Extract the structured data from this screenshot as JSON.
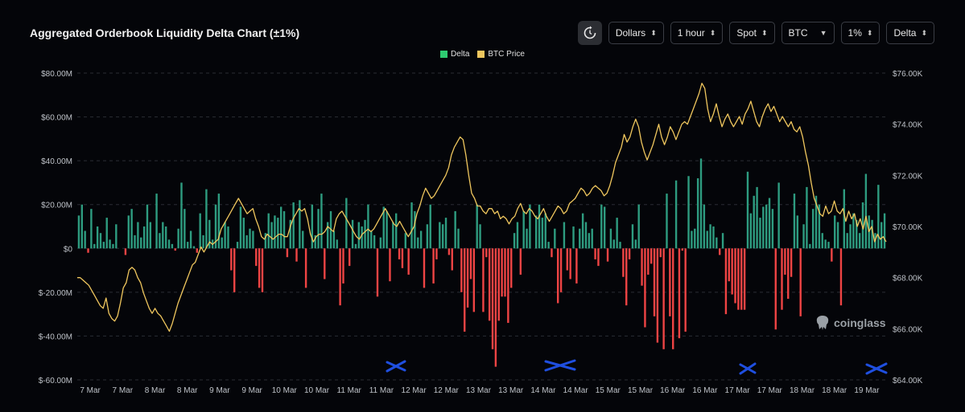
{
  "header": {
    "title": "Aggregated Orderbook Liquidity Delta Chart (±1%)",
    "controls": [
      {
        "label": "Dollars",
        "icon": "updown-chevron-icon"
      },
      {
        "label": "1 hour",
        "icon": "updown-chevron-icon"
      },
      {
        "label": "Spot",
        "icon": "updown-chevron-icon"
      },
      {
        "label": "BTC",
        "icon": "caret-down-icon"
      },
      {
        "label": "1%",
        "icon": "updown-chevron-icon"
      },
      {
        "label": "Delta",
        "icon": "updown-chevron-icon"
      }
    ]
  },
  "watermark": "coinglass",
  "chart_data": {
    "type": "bar+line",
    "title": "Aggregated Orderbook Liquidity Delta Chart (±1%)",
    "legend": [
      {
        "name": "Delta",
        "color": "#2ecc71"
      },
      {
        "name": "BTC Price",
        "color": "#f0c75e"
      }
    ],
    "colors": {
      "positive": "#2e9c80",
      "negative": "#ef4444",
      "price": "#f0c75e",
      "marker": "#1f4fe0"
    },
    "y_left": {
      "min": -60000000,
      "max": 80000000,
      "ticks": [
        80000000,
        60000000,
        40000000,
        20000000,
        0,
        -20000000,
        -40000000,
        -60000000
      ],
      "tick_labels": [
        "$80.00M",
        "$60.00M",
        "$40.00M",
        "$20.00M",
        "$0",
        "$-20.00M",
        "$-40.00M",
        "$-60.00M"
      ]
    },
    "y_right": {
      "min": 64000,
      "max": 76000,
      "ticks": [
        76000,
        74000,
        72000,
        70000,
        68000,
        66000,
        64000
      ],
      "tick_labels": [
        "$76.00K",
        "$74.00K",
        "$72.00K",
        "$70.00K",
        "$68.00K",
        "$66.00K",
        "$64.00K"
      ]
    },
    "x_labels": [
      "7 Mar",
      "7 Mar",
      "8 Mar",
      "8 Mar",
      "9 Mar",
      "9 Mar",
      "10 Mar",
      "10 Mar",
      "11 Mar",
      "11 Mar",
      "12 Mar",
      "12 Mar",
      "13 Mar",
      "13 Mar",
      "14 Mar",
      "14 Mar",
      "15 Mar",
      "15 Mar",
      "16 Mar",
      "16 Mar",
      "17 Mar",
      "17 Mar",
      "18 Mar",
      "18 Mar",
      "19 Mar"
    ],
    "delta_values_musd": [
      15,
      20,
      8,
      -2,
      18,
      2,
      10,
      7,
      3,
      14,
      4,
      2,
      11,
      0,
      0,
      -3,
      15,
      18,
      6,
      12,
      5,
      10,
      20,
      12,
      0,
      25,
      7,
      12,
      10,
      4,
      2,
      -1,
      9,
      30,
      18,
      3,
      8,
      1,
      -2,
      16,
      6,
      27,
      13,
      4,
      20,
      25,
      5,
      12,
      10,
      -10,
      -20,
      3,
      19,
      14,
      6,
      9,
      8,
      -8,
      -18,
      -20,
      7,
      16,
      12,
      15,
      14,
      19,
      17,
      -4,
      13,
      21,
      -6,
      22,
      8,
      -18,
      0,
      20,
      6,
      18,
      25,
      -14,
      12,
      17,
      8,
      4,
      -26,
      -16,
      23,
      -8,
      13,
      2,
      12,
      10,
      13,
      20,
      8,
      6,
      -22,
      5,
      19,
      17,
      -15,
      12,
      16,
      -5,
      -9,
      7,
      -12,
      21,
      17,
      5,
      8,
      -18,
      11,
      20,
      -16,
      -5,
      12,
      11,
      14,
      -3,
      -10,
      17,
      9,
      -20,
      -38,
      -27,
      -14,
      -29,
      20,
      11,
      -29,
      -4,
      -33,
      -46,
      -54,
      -33,
      -22,
      -22,
      -34,
      -18,
      7,
      12,
      -12,
      17,
      9,
      20,
      0,
      15,
      20,
      14,
      16,
      3,
      -4,
      9,
      -25,
      -20,
      12,
      -10,
      -14,
      10,
      -16,
      9,
      16,
      12,
      7,
      9,
      -5,
      -8,
      20,
      19,
      -6,
      9,
      4,
      14,
      3,
      -13,
      -26,
      -5,
      11,
      4,
      20,
      -17,
      -36,
      -12,
      -7,
      -31,
      -43,
      -4,
      -46,
      25,
      -31,
      -46,
      31,
      -41,
      -1,
      -38,
      33,
      8,
      9,
      32,
      41,
      20,
      8,
      11,
      10,
      5,
      -3,
      7,
      -30,
      -15,
      -21,
      -25,
      -28,
      -28,
      -28,
      35,
      16,
      24,
      28,
      14,
      19,
      20,
      23,
      18,
      -37,
      30,
      -28,
      -12,
      -23,
      -13,
      25,
      15,
      -31,
      11,
      28,
      2,
      18,
      24,
      20,
      7,
      4,
      3,
      -6,
      15,
      12,
      -26,
      27,
      7,
      11,
      16,
      13,
      7,
      21,
      34,
      15,
      13,
      7,
      29,
      12,
      16
    ],
    "price_points_k": [
      68.0,
      68.0,
      67.9,
      67.8,
      67.7,
      67.5,
      67.3,
      67.1,
      66.9,
      66.8,
      67.2,
      66.6,
      66.4,
      66.3,
      66.5,
      67.0,
      67.6,
      67.8,
      68.3,
      68.4,
      68.3,
      68.0,
      67.8,
      67.4,
      67.1,
      66.8,
      66.6,
      66.8,
      66.6,
      66.5,
      66.3,
      66.1,
      65.9,
      66.2,
      66.6,
      67.0,
      67.3,
      67.6,
      67.9,
      68.2,
      68.5,
      68.6,
      68.9,
      69.2,
      69.0,
      69.2,
      69.4,
      69.3,
      69.4,
      69.5,
      69.9,
      70.1,
      70.3,
      70.5,
      70.7,
      70.9,
      71.1,
      70.9,
      70.7,
      70.5,
      70.6,
      70.7,
      70.3,
      70.0,
      69.6,
      69.5,
      69.7,
      69.6,
      69.5,
      69.6,
      69.7,
      69.7,
      69.6,
      69.6,
      70.0,
      70.3,
      70.5,
      70.7,
      70.6,
      70.7,
      70.3,
      69.7,
      69.4,
      69.6,
      69.7,
      69.7,
      69.8,
      70.0,
      69.9,
      69.8,
      70.3,
      70.5,
      70.6,
      70.4,
      70.2,
      70.0,
      69.8,
      69.6,
      69.5,
      69.7,
      69.8,
      69.9,
      69.8,
      69.9,
      70.1,
      70.3,
      70.5,
      70.7,
      70.5,
      70.3,
      70.1,
      70.0,
      70.2,
      70.0,
      69.8,
      69.6,
      69.8,
      70.0,
      70.5,
      70.8,
      71.2,
      71.5,
      71.3,
      71.1,
      71.2,
      71.4,
      71.6,
      71.8,
      72.0,
      72.3,
      72.8,
      73.1,
      73.3,
      73.5,
      73.4,
      72.8,
      72.0,
      71.3,
      71.1,
      70.8,
      70.8,
      70.6,
      70.5,
      70.7,
      70.7,
      70.5,
      70.6,
      70.3,
      70.4,
      70.3,
      70.1,
      70.3,
      70.4,
      70.7,
      70.9,
      70.6,
      70.5,
      70.7,
      70.6,
      70.4,
      70.3,
      70.5,
      70.7,
      70.4,
      70.2,
      70.4,
      70.6,
      70.8,
      70.7,
      70.5,
      70.6,
      70.9,
      71.0,
      71.1,
      71.3,
      71.5,
      71.4,
      71.2,
      71.3,
      71.5,
      71.6,
      71.5,
      71.4,
      71.2,
      71.3,
      71.6,
      72.0,
      72.5,
      72.8,
      73.1,
      73.6,
      73.3,
      73.5,
      73.9,
      74.2,
      73.9,
      73.3,
      72.9,
      72.6,
      72.9,
      73.2,
      73.6,
      74.0,
      73.5,
      73.2,
      73.5,
      73.9,
      73.7,
      73.4,
      73.7,
      74.0,
      74.1,
      74.0,
      74.3,
      74.6,
      74.9,
      75.2,
      75.6,
      75.4,
      74.6,
      74.1,
      74.4,
      74.8,
      74.3,
      73.9,
      74.2,
      74.4,
      74.1,
      73.9,
      74.1,
      74.3,
      74.0,
      74.4,
      74.6,
      74.9,
      74.5,
      74.1,
      73.9,
      74.3,
      74.6,
      74.8,
      74.5,
      74.7,
      74.4,
      74.1,
      74.3,
      74.1,
      73.9,
      74.1,
      73.8,
      73.7,
      73.9,
      73.5,
      72.9,
      72.4,
      71.7,
      71.1,
      70.8,
      70.5,
      70.4,
      70.8,
      70.5,
      70.6,
      71.0,
      70.6,
      70.5,
      70.7,
      70.2,
      70.6,
      70.3,
      70.5,
      70.0,
      70.3,
      69.9,
      70.4,
      69.8,
      70.0,
      69.4,
      69.7,
      69.5,
      69.6,
      69.4
    ],
    "annotations": [
      {
        "type": "x-mark",
        "near_x_label": "12 Mar",
        "color": "#1f4fe0"
      },
      {
        "type": "x-mark",
        "near_x_label": "14 Mar",
        "color": "#1f4fe0"
      },
      {
        "type": "x-mark",
        "near_x_label": "17 Mar",
        "color": "#1f4fe0"
      },
      {
        "type": "x-mark",
        "near_x_label": "19 Mar",
        "color": "#1f4fe0"
      }
    ]
  }
}
